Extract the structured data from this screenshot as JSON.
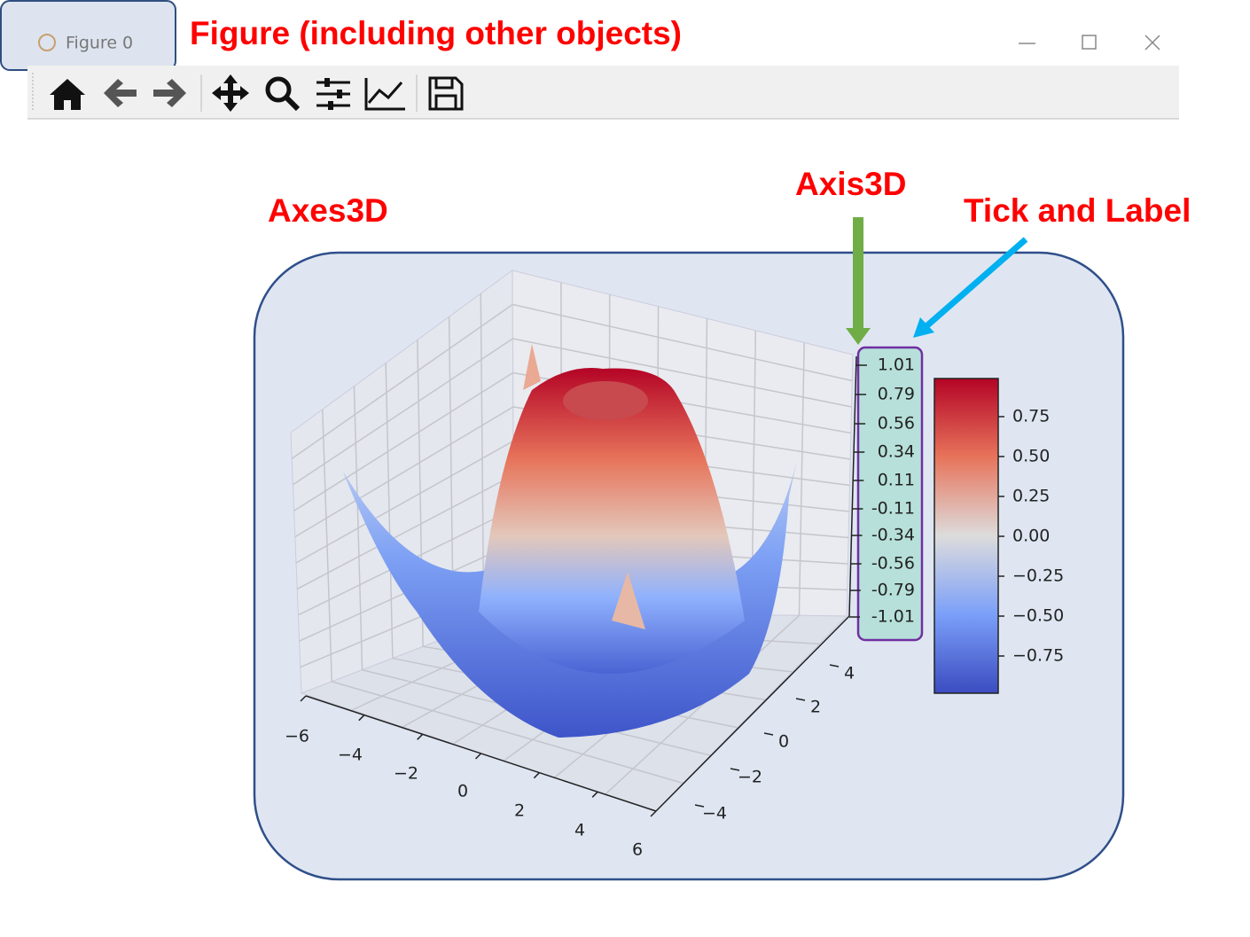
{
  "window": {
    "title": "Figure 0"
  },
  "annotations": {
    "figure": "Figure (including other objects)",
    "axes": "Axes3D",
    "axis": "Axis3D",
    "tick": "Tick and Label"
  },
  "plot": {
    "z_tick_labels": [
      "1.01",
      "0.79",
      "0.56",
      "0.34",
      "0.11",
      "-0.11",
      "-0.34",
      "-0.56",
      "-0.79",
      "-1.01"
    ],
    "x_tick_labels": [
      "−6",
      "−4",
      "−2",
      "0",
      "2",
      "4",
      "6"
    ],
    "y_tick_labels": [
      "4",
      "2",
      "0",
      "−2",
      "−4"
    ],
    "colorbar_tick_labels": [
      "0.75",
      "0.50",
      "0.25",
      "0.00",
      "−0.25",
      "−0.50",
      "−0.75"
    ]
  }
}
